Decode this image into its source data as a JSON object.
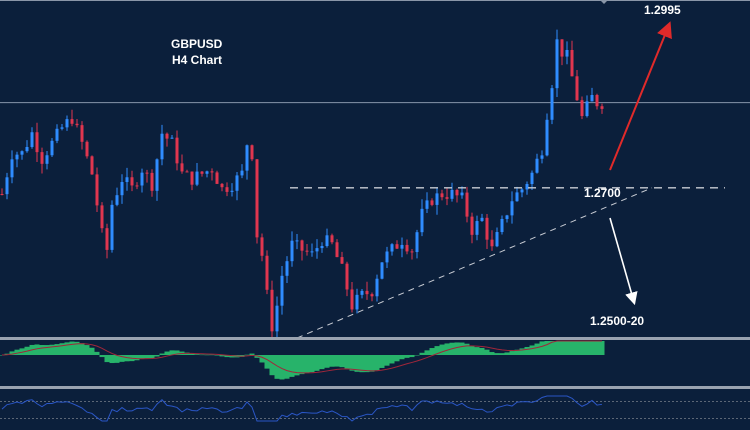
{
  "chart_data": {
    "type": "candlestick",
    "symbol": "GBPUSD",
    "timeframe_label": "H4 Chart",
    "title": "GBPUSD",
    "subtitle": "H4 Chart",
    "ylim": [
      1.2439,
      1.3033
    ],
    "x": [
      0,
      2,
      4,
      6,
      8,
      10,
      12,
      14,
      16,
      18,
      20,
      21,
      22,
      24,
      26,
      28,
      30,
      32,
      34,
      36,
      38,
      40,
      42,
      44,
      46,
      48,
      49,
      50,
      51,
      52,
      53,
      54,
      55,
      56,
      58,
      60,
      62,
      64,
      66,
      68,
      70,
      72,
      74,
      76,
      78,
      80,
      82,
      84,
      86,
      88,
      90,
      92,
      94,
      96,
      98,
      100,
      102,
      104,
      106,
      108,
      109,
      110,
      111,
      112,
      113,
      114,
      115,
      116,
      117,
      118,
      119,
      120
    ],
    "close": [
      1.2689,
      1.2761,
      1.2761,
      1.2797,
      1.2752,
      1.2779,
      1.2806,
      1.2824,
      1.2779,
      1.2725,
      1.2617,
      1.259,
      1.2671,
      1.2716,
      1.2698,
      1.2734,
      1.2707,
      1.2797,
      1.2779,
      1.2725,
      1.2716,
      1.2725,
      1.2734,
      1.2698,
      1.2707,
      1.2725,
      1.2779,
      1.2761,
      1.2617,
      1.2581,
      1.2509,
      1.2455,
      1.2491,
      1.2545,
      1.2599,
      1.259,
      1.2581,
      1.2608,
      1.2599,
      1.2554,
      1.2491,
      1.2509,
      1.2518,
      1.2572,
      1.259,
      1.2608,
      1.259,
      1.2653,
      1.268,
      1.2689,
      1.2689,
      1.268,
      1.2626,
      1.2644,
      1.259,
      1.2635,
      1.268,
      1.2698,
      1.2725,
      1.277,
      1.2833,
      1.2887,
      1.2959,
      1.2941,
      1.2932,
      1.2896,
      1.286,
      1.2824,
      1.2842,
      1.286,
      1.2851,
      1.2851
    ],
    "current_price_line": 1.2851,
    "levels": {
      "resistance": {
        "value": 1.27,
        "label": "1.2700"
      },
      "target_up": {
        "value": 1.2995,
        "label": "1.2995"
      },
      "target_down": {
        "value": 1.251,
        "label": "1.2500-20"
      }
    },
    "trendline": {
      "from": {
        "x": 59,
        "price": 1.2439
      },
      "to": {
        "x": 130,
        "price": 1.27
      }
    },
    "indicators": [
      "MACD histogram with signal line",
      "oscillator line"
    ],
    "colors": {
      "background": "#0b1f3b",
      "bull": "#2f8cff",
      "bear": "#e0364f",
      "histogram": "#27b36a",
      "signal": "#a0263a",
      "oscillator": "#2a56c6",
      "arrow_up": "#e02a2a",
      "arrow_down": "#ffffff"
    }
  }
}
